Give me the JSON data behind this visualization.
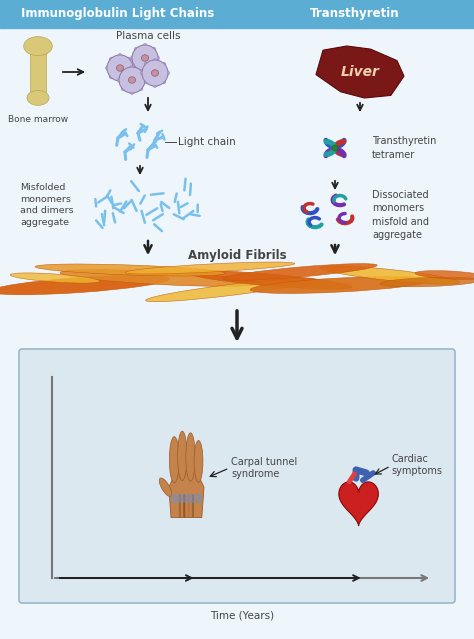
{
  "title_left": "Immunoglobulin Light Chains",
  "title_right": "Transthyretin",
  "header_color": "#5badd4",
  "header_text_color": "#ffffff",
  "bg_color": "#eef5fb",
  "body_bg": "#ffffff",
  "labels": {
    "bone_marrow": "Bone marrow",
    "plasma_cells": "Plasma cells",
    "light_chain": "Light chain",
    "misfolded": "Misfolded\nmonomers\nand dimers\naggregate",
    "liver": "Liver",
    "transthyretin_tetramer": "Transthyretin\ntetramer",
    "dissociated": "Dissociated\nmonomers\nmisfold and\naggregate",
    "amyloid_fibrils": "Amyloid Fibrils",
    "carpal_tunnel": "Carpal tunnel\nsyndrome",
    "cardiac_symptoms": "Cardiac\nsymptoms",
    "time_years": "Time (Years)"
  },
  "colors": {
    "light_chain_blue": "#7ac0ec",
    "fibril_orange": "#d96010",
    "fibril_yellow": "#f0b832",
    "fibril_dark": "#c05808",
    "arrow_dark": "#222222",
    "graph_bg": "#dce8f0",
    "label_color": "#444444",
    "bone_color": "#d8c878",
    "bone_edge": "#b8a850",
    "plasma_outer": "#c8c0e0",
    "plasma_nucleus": "#c890a0",
    "plasma_edge": "#9080b0",
    "liver_fill": "#7a1818",
    "liver_edge": "#5a0808",
    "liver_text": "#f0d0b0",
    "protein_blue": "#3050c0",
    "protein_red": "#c03030",
    "protein_green": "#308030",
    "protein_purple": "#7030b0",
    "protein_teal": "#20a0a0",
    "hand_skin": "#c4834a",
    "hand_dark": "#9a5a28",
    "heart_red": "#cc2020",
    "heart_dark": "#880808",
    "aorta_blue": "#4060b0",
    "graph_axis": "#777777",
    "graph_border": "#99b8cc"
  }
}
